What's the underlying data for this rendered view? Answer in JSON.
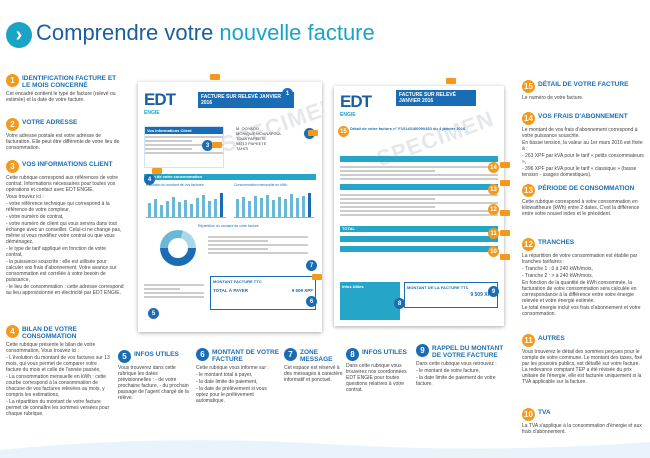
{
  "header": {
    "title_main": "Comprendre votre ",
    "title_accent": "nouvelle facture",
    "icon": "info-icon"
  },
  "left": [
    {
      "num": "1",
      "title": "IDENTIFICATION FACTURE ET LE MOIS CONCERNÉ",
      "body": "Cet encadré contient le type de facture (relevé ou estimée) et la date de votre facture."
    },
    {
      "num": "2",
      "title": "VOTRE ADRESSE",
      "body": "Votre adresse postale est votre adresse de facturation. Elle peut être différente de votre lieu de consommation."
    },
    {
      "num": "3",
      "title": "VOS INFORMATIONS CLIENT",
      "body": "Cette rubrique correspond aux références de votre contrat. Informations nécessaires pour toutes vos opérations et contact avec EDT ENGIE.",
      "intro": "Vous trouvez ici :",
      "items": [
        "- votre référence technique qui correspond à la référence de votre compteur,",
        "- votre numéro de contrat,",
        "- votre numéro de client qui vous servira dans tout échange avec un conseiller. Celui-ci ne change pas, même si vous modifiez votre contrat ou que vous déménagez,",
        "- le type de tarif appliqué en fonction de votre contrat,",
        "- la puissance souscrite : elle est utilisée pour calculer vos frais d'abonnement. Votre avance sur consommation est corrélée à votre besoin de puissance,",
        "- le lieu de consommation : cette adresse correspond au lieu approvisionné en électricité par EDT ENGIE."
      ]
    },
    {
      "num": "4",
      "title": "BILAN DE VOTRE CONSOMMATION",
      "body": "Cette rubrique présente le bilan de votre consommation. Vous trouvez ici :",
      "items": [
        "- L'évolution du montant de vos factures sur 13 mois, qui vous permet de comparer votre facture du mois et celle de l'année passée,",
        "- La consommation mensuelle en kWh : cette courbe correspond à la consommation de chacune de vos factures relevées au mois, y compris les estimations,",
        "- La répartition du montant de votre facture permet de connaître les sommes versées pour chaque rubrique."
      ]
    }
  ],
  "bottom": [
    {
      "num": "5",
      "title": "INFOS UTILES",
      "body": "Vous trouverez dans cette rubrique les dates prévisionnelles : - de votre prochaine facture, - du prochain passage de l'agent chargé de la relève."
    },
    {
      "num": "6",
      "title": "MONTANT DE VOTRE FACTURE",
      "body": "Cette rubrique vous informe sur :",
      "items": [
        "- le montant total à payer,",
        "- la date limite de paiement,",
        "- la date de prélèvement si vous optez pour le prélèvement automatique."
      ]
    },
    {
      "num": "7",
      "title": "ZONE MESSAGE",
      "body": "Cet espace est réservé à des messages à caractère informatif et ponctuel."
    },
    {
      "num": "8",
      "title": "INFOS UTILES",
      "body": "Dans cette rubrique vous trouverez nos coordonnées EDT ENGIE pour toutes questions relatives à votre contrat."
    },
    {
      "num": "9",
      "title": "RAPPEL DU MONTANT DE VOTRE FACTURE",
      "body": "Dans cette rubrique vous retrouvez :",
      "items": [
        "- le montant de votre facture,",
        "- la date limite de paiement de votre facture."
      ]
    }
  ],
  "right": [
    {
      "num": "15",
      "title": "DÉTAIL DE VOTRE FACTURE",
      "body": "Le numéro de votre facture."
    },
    {
      "num": "14",
      "title": "VOS FRAIS D'ABONNEMENT",
      "body": "Le montant de vos frais d'abonnement correspond à votre puissance souscrite.",
      "items": [
        "En basse tension, la valeur au 1er mars 2016 est fixée à :",
        "- 263 XPF par kVA pour le tarif « petits consommateurs »,",
        "- 396 XPF par kVA pour le tarif « classique » (basse tension - usages domestiques)."
      ]
    },
    {
      "num": "13",
      "title": "PÉRIODE DE CONSOMMATION",
      "body": "Cette rubrique correspond à votre consommation en kilowattheure (kWh) entre 2 dates. C'est la différence entre votre nouvel index et le précédent."
    },
    {
      "num": "12",
      "title": "TRANCHES",
      "body": "La répartition de votre consommation est établie par tranches tarifaires :",
      "items": [
        "- Tranche 1 : 0 à 240 kWh/mois,",
        "- Tranche 2 : > à 240 kWh/mois.",
        "En fonction de la quantité de kWh consommée, la facturation de votre consommation sera calculée en correspondance à la différence entre votre énergie relevée et votre énergie estimée.",
        "Le total énergie inclut vos frais d'abonnement et votre consommation."
      ]
    },
    {
      "num": "11",
      "title": "AUTRES",
      "body": "Vous trouverez le détail des sommes perçues pour le compte de votre commune. Le montant des taxes, fixé par les pouvoirs publics, est détaillé sur votre facture. La redevance comptant TEP a été révisée du prix unitaire de l'énergie, elle est facturée uniquement si la TVA applicable sur la facture."
    },
    {
      "num": "10",
      "title": "TVA",
      "body": "La TVA s'applique à la consommation d'énergie et aux frais d'abonnement."
    }
  ],
  "bill_left": {
    "brand": "EDT",
    "sub": "ENGIE",
    "header": "FACTURE SUR RELEVÉ JANVIER 2016",
    "info_title": "Vos informations Client",
    "addr": [
      "M. OOYAOO",
      "MONIQUE MOANAFOUL",
      "TOUA PAPEETE",
      "98713 PAPEETE",
      "TAHITI"
    ],
    "bilan": "Bilan de votre consommation",
    "evol": "Évolution du montant de vos factures",
    "conso": "Consommation mensuelle en kWh",
    "rep": "Répartition du montant de votre facture",
    "total_label": "TOTAL À PAYER",
    "total": "9 509 XPF",
    "montant_label": "MONTANT FACTURE TTC",
    "watermark": "SPECIMEN"
  },
  "bill_right": {
    "brand": "EDT",
    "sub": "ENGIE",
    "header": "FACTURE SUR RELEVÉ JANVIER 2016",
    "detail": "Détail de votre facture n° F10140180000453 du 4 janvier 2016",
    "total_label": "TOTAL",
    "infos": "Infos Utiles",
    "montant": "MONTANT DE LA FACTURE TTC",
    "amount": "9 509 XPF",
    "watermark": "SPECIMEN"
  },
  "colors": {
    "blue": "#1a6db4",
    "teal": "#1aa3c7",
    "orange": "#f39a1e"
  }
}
